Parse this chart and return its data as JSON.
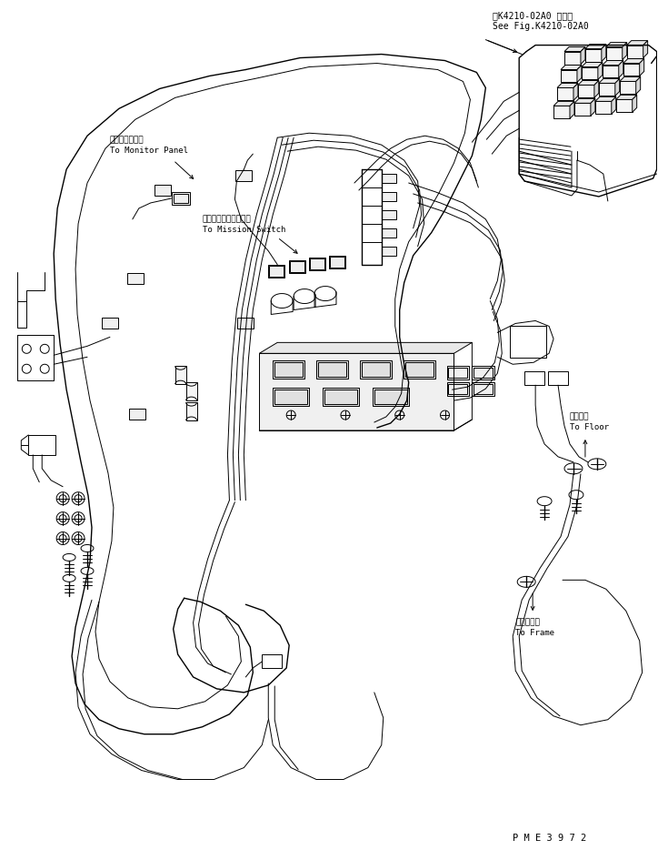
{
  "bg_color": "#ffffff",
  "line_color": "#000000",
  "fig_width": 7.24,
  "fig_height": 9.34,
  "dpi": 100,
  "top_right_text1": "第K4210-02A0 図参照",
  "top_right_text2": "See Fig.K4210-02A0",
  "bottom_right_text": "P M E 3 9 7 2",
  "label_monitor_jp": "モニタパネルへ",
  "label_monitor_en": "To Monitor Panel",
  "label_mission_jp": "ミッションスイッチへ",
  "label_mission_en": "To Mission Switch",
  "label_floor_jp": "フロアへ",
  "label_floor_en": "To Floor",
  "label_frame_jp": "フレームへ",
  "label_frame_en": "To Frame"
}
